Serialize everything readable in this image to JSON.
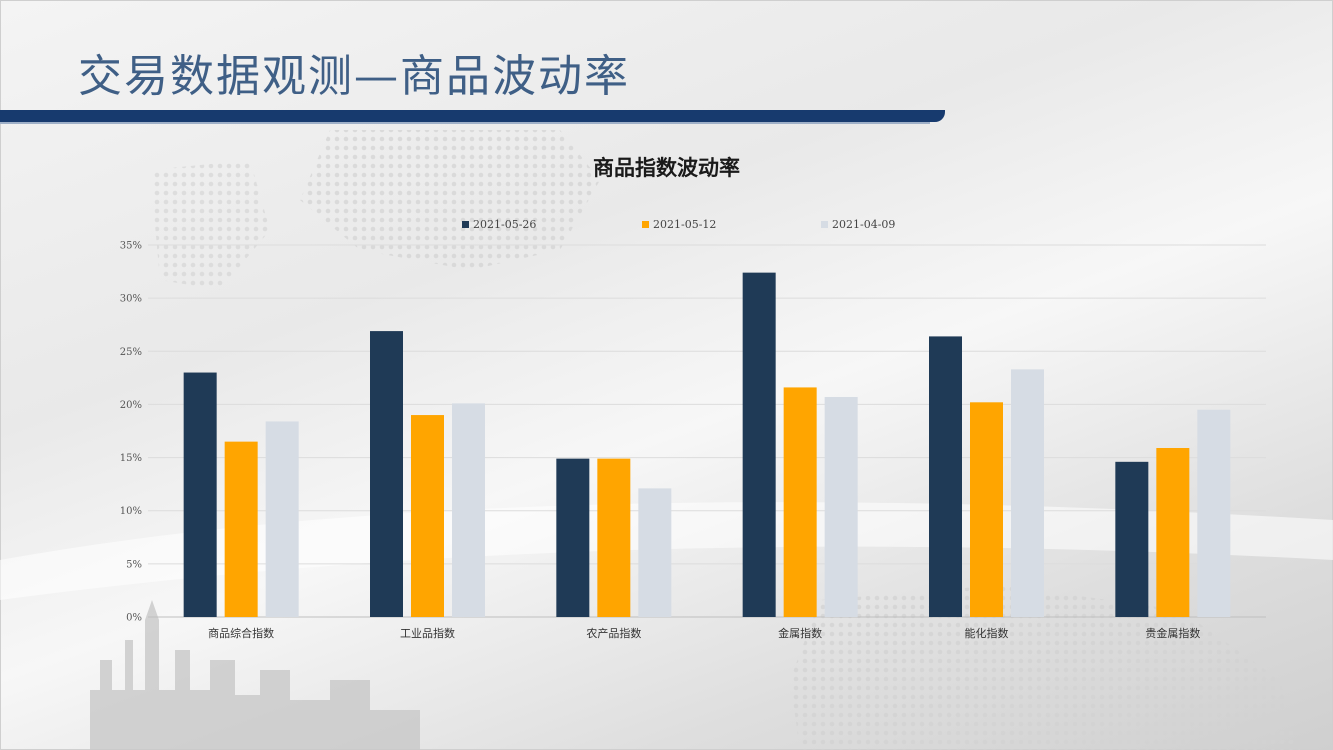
{
  "slide": {
    "title": "交易数据观测—商品波动率"
  },
  "colors": {
    "series_1": "#1f3a56",
    "series_2": "#ffa500",
    "series_3": "#d6dce4",
    "accent": "#173a6e",
    "title": "#3f5f86"
  },
  "chart_data": {
    "type": "bar",
    "title": "商品指数波动率",
    "xlabel": "",
    "ylabel": "",
    "ylim": [
      0,
      35
    ],
    "yticks": [
      "0%",
      "5%",
      "10%",
      "15%",
      "20%",
      "25%",
      "30%",
      "35%"
    ],
    "ytick_values": [
      0,
      5,
      10,
      15,
      20,
      25,
      30,
      35
    ],
    "grid": true,
    "legend_position": "top-center",
    "categories": [
      "商品综合指数",
      "工业品指数",
      "农产品指数",
      "金属指数",
      "能化指数",
      "贵金属指数"
    ],
    "series": [
      {
        "name": "2021-05-26",
        "values": [
          23.0,
          26.9,
          14.9,
          32.4,
          26.4,
          14.6
        ]
      },
      {
        "name": "2021-05-12",
        "values": [
          16.5,
          19.0,
          14.9,
          21.6,
          20.2,
          15.9
        ]
      },
      {
        "name": "2021-04-09",
        "values": [
          18.4,
          20.1,
          12.1,
          20.7,
          23.3,
          19.5
        ]
      }
    ]
  }
}
